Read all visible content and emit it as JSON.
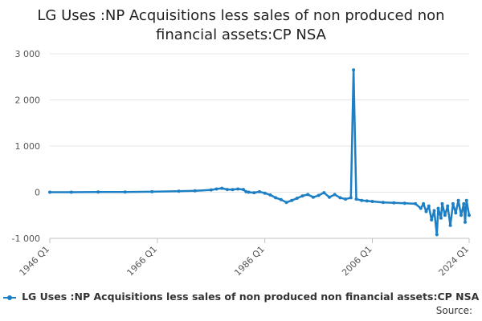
{
  "colors": {
    "series": "#1d7fc4",
    "grid": "#e6e6e6",
    "axis": "#c0c0c0",
    "tick_text": "#555555"
  },
  "source_label": "Source:",
  "chart_data": {
    "type": "line",
    "title": "LG Uses :NP Acquisitions less sales of non produced non financial assets:CP NSA",
    "xlabel": "",
    "ylabel": "",
    "x_ticks": [
      "1946 Q1",
      "1966 Q1",
      "1986 Q1",
      "2006 Q1",
      "2024 Q1"
    ],
    "y_ticks": [
      "3 000",
      "2 000",
      "1 000",
      "0",
      "-1 000"
    ],
    "ylim": [
      -1000,
      3000
    ],
    "xlim": [
      "1946 Q1",
      "2024 Q1"
    ],
    "grid": "horizontal",
    "legend": "bottom",
    "series": [
      {
        "name": "LG Uses :NP Acquisitions less sales of non produced non financial assets:CP NSA",
        "points": [
          [
            "1946 Q1",
            0
          ],
          [
            "1950 Q1",
            0
          ],
          [
            "1955 Q1",
            5
          ],
          [
            "1960 Q1",
            5
          ],
          [
            "1965 Q1",
            10
          ],
          [
            "1970 Q1",
            20
          ],
          [
            "1973 Q1",
            30
          ],
          [
            "1976 Q1",
            50
          ],
          [
            "1977 Q1",
            70
          ],
          [
            "1978 Q1",
            85
          ],
          [
            "1979 Q1",
            60
          ],
          [
            "1980 Q1",
            55
          ],
          [
            "1981 Q1",
            70
          ],
          [
            "1982 Q1",
            60
          ],
          [
            "1982 Q3",
            10
          ],
          [
            "1983 Q1",
            0
          ],
          [
            "1984 Q1",
            -10
          ],
          [
            "1985 Q1",
            10
          ],
          [
            "1986 Q1",
            -20
          ],
          [
            "1987 Q1",
            -60
          ],
          [
            "1988 Q1",
            -120
          ],
          [
            "1989 Q1",
            -160
          ],
          [
            "1990 Q1",
            -220
          ],
          [
            "1991 Q1",
            -180
          ],
          [
            "1992 Q1",
            -130
          ],
          [
            "1993 Q1",
            -80
          ],
          [
            "1994 Q1",
            -50
          ],
          [
            "1995 Q1",
            -110
          ],
          [
            "1996 Q1",
            -70
          ],
          [
            "1997 Q1",
            -10
          ],
          [
            "1998 Q1",
            -110
          ],
          [
            "1999 Q1",
            -50
          ],
          [
            "2000 Q1",
            -120
          ],
          [
            "2001 Q1",
            -150
          ],
          [
            "2002 Q1",
            -120
          ],
          [
            "2002 Q3",
            2650
          ],
          [
            "2003 Q1",
            -150
          ],
          [
            "2004 Q1",
            -180
          ],
          [
            "2005 Q1",
            -190
          ],
          [
            "2006 Q1",
            -200
          ],
          [
            "2008 Q1",
            -220
          ],
          [
            "2010 Q1",
            -230
          ],
          [
            "2012 Q1",
            -240
          ],
          [
            "2014 Q1",
            -250
          ],
          [
            "2015 Q1",
            -350
          ],
          [
            "2015 Q3",
            -250
          ],
          [
            "2016 Q1",
            -420
          ],
          [
            "2016 Q3",
            -300
          ],
          [
            "2017 Q1",
            -600
          ],
          [
            "2017 Q3",
            -400
          ],
          [
            "2018 Q1",
            -920
          ],
          [
            "2018 Q2",
            -350
          ],
          [
            "2018 Q4",
            -560
          ],
          [
            "2019 Q1",
            -250
          ],
          [
            "2019 Q3",
            -500
          ],
          [
            "2020 Q1",
            -300
          ],
          [
            "2020 Q3",
            -720
          ],
          [
            "2021 Q1",
            -250
          ],
          [
            "2021 Q3",
            -450
          ],
          [
            "2022 Q1",
            -180
          ],
          [
            "2022 Q3",
            -500
          ],
          [
            "2023 Q1",
            -250
          ],
          [
            "2023 Q2",
            -650
          ],
          [
            "2023 Q3",
            -180
          ],
          [
            "2024 Q1",
            -500
          ]
        ]
      }
    ]
  }
}
